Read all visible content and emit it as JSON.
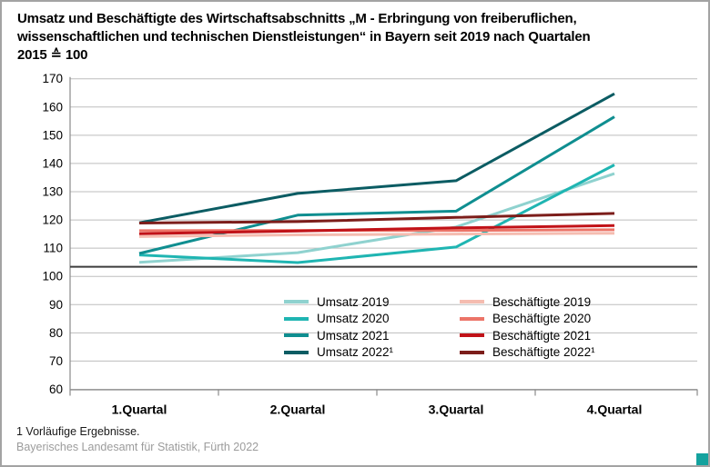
{
  "title": "Umsatz und Beschäftigte des Wirtschaftsabschnitts „M - Erbringung von freiberuflichen, wissenschaftlichen und technischen Dienstleistungen“ in Bayern seit 2019 nach Quartalen",
  "subtitle": "2015 ≙ 100",
  "footnote": "1 Vorläufige Ergebnisse.",
  "source": "Bayerisches Landesamt für Statistik, Fürth 2022",
  "colors": {
    "grid": "#bdbdbd",
    "axis": "#8a8a8a",
    "reference_line": "#3d3d3d",
    "text": "#000000",
    "source_text": "#9c9c9c",
    "corner_mark": "#14a29e"
  },
  "chart_data": {
    "type": "line",
    "categories": [
      "1.Quartal",
      "2.Quartal",
      "3.Quartal",
      "4.Quartal"
    ],
    "series": [
      {
        "name": "Umsatz 2019",
        "color": "#8fd2cf",
        "values": [
          105.0,
          108.4,
          117.5,
          136.4
        ]
      },
      {
        "name": "Umsatz 2020",
        "color": "#1fb5b2",
        "values": [
          107.6,
          104.9,
          110.4,
          139.5
        ]
      },
      {
        "name": "Umsatz 2021",
        "color": "#0f8e90",
        "values": [
          108.1,
          121.7,
          123.1,
          156.5
        ]
      },
      {
        "name": "Umsatz 2022¹",
        "color": "#0b5c63",
        "values": [
          119.0,
          129.4,
          133.9,
          164.7
        ]
      },
      {
        "name": "Beschäftigte 2019",
        "color": "#f5bcb0",
        "values": [
          114.1,
          114.7,
          115.0,
          115.3
        ]
      },
      {
        "name": "Beschäftigte 2020",
        "color": "#ec7468",
        "values": [
          116.2,
          116.3,
          116.3,
          116.5
        ]
      },
      {
        "name": "Beschäftigte 2021",
        "color": "#c11218",
        "values": [
          115.1,
          116.1,
          117.2,
          118.0
        ]
      },
      {
        "name": "Beschäftigte 2022¹",
        "color": "#7c1d1a",
        "values": [
          118.9,
          119.4,
          120.9,
          122.3
        ]
      }
    ],
    "ylim": [
      60,
      170
    ],
    "ytick_step": 10,
    "reference_line": 103.4,
    "grid": true,
    "legend_position": "inside-center-bottom",
    "xlabel": "",
    "ylabel": ""
  }
}
